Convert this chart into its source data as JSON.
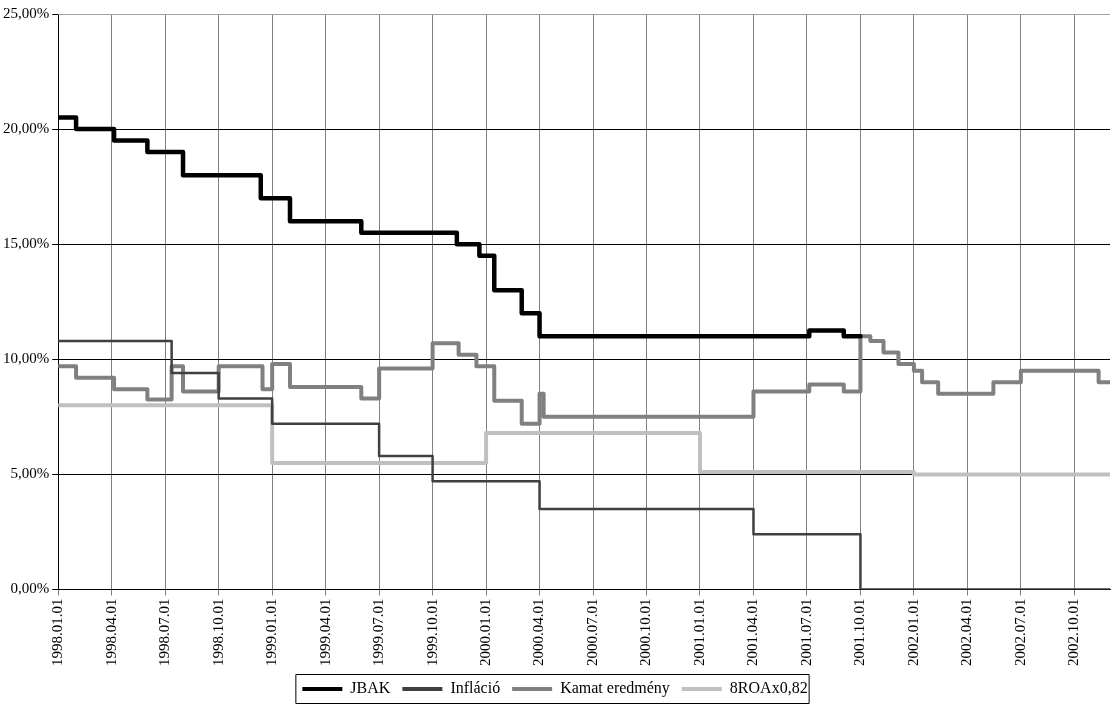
{
  "chart_data": {
    "type": "step",
    "xlim": [
      "1998-01-01",
      "2002-12-01"
    ],
    "xticks": [
      {
        "value": "1998-01-01",
        "label": "1998.01.01"
      },
      {
        "value": "1998-04-01",
        "label": "1998.04.01"
      },
      {
        "value": "1998-07-01",
        "label": "1998.07.01"
      },
      {
        "value": "1998-10-01",
        "label": "1998.10.01"
      },
      {
        "value": "1999-01-01",
        "label": "1999.01.01"
      },
      {
        "value": "1999-04-01",
        "label": "1999.04.01"
      },
      {
        "value": "1999-07-01",
        "label": "1999.07.01"
      },
      {
        "value": "1999-10-01",
        "label": "1999.10.01"
      },
      {
        "value": "2000-01-01",
        "label": "2000.01.01"
      },
      {
        "value": "2000-04-01",
        "label": "2000.04.01"
      },
      {
        "value": "2000-07-01",
        "label": "2000.07.01"
      },
      {
        "value": "2000-10-01",
        "label": "2000.10.01"
      },
      {
        "value": "2001-01-01",
        "label": "2001.01.01"
      },
      {
        "value": "2001-04-01",
        "label": "2001.04.01"
      },
      {
        "value": "2001-07-01",
        "label": "2001.07.01"
      },
      {
        "value": "2001-10-01",
        "label": "2001.10.01"
      },
      {
        "value": "2002-01-01",
        "label": "2002.01.01"
      },
      {
        "value": "2002-04-01",
        "label": "2002.04.01"
      },
      {
        "value": "2002-07-01",
        "label": "2002.07.01"
      },
      {
        "value": "2002-10-01",
        "label": "2002.10.01"
      }
    ],
    "ylim": [
      0,
      25
    ],
    "yticks": [
      {
        "value": 0,
        "label": "0,00%"
      },
      {
        "value": 5,
        "label": "5,00%"
      },
      {
        "value": 10,
        "label": "10,00%"
      },
      {
        "value": 15,
        "label": "15,00%"
      },
      {
        "value": 20,
        "label": "20,00%"
      },
      {
        "value": 25,
        "label": "25,00%"
      }
    ],
    "grid": true,
    "legend": "bottom",
    "line_style": "solid",
    "marker": "none",
    "series": [
      {
        "name": "JBAK",
        "color": "#000000",
        "x": [
          "1998-01-01",
          "1998-02-01",
          "1998-04-05",
          "1998-06-01",
          "1998-08-01",
          "1998-12-12",
          "1999-02-01",
          "1999-06-01",
          "1999-11-12",
          "1999-12-20",
          "2000-01-15",
          "2000-03-01",
          "2000-04-01",
          "2001-07-05",
          "2001-09-03",
          "2001-10-01"
        ],
        "values": [
          20.5,
          20,
          19.5,
          19,
          18,
          17,
          16,
          15.5,
          15,
          14.5,
          13,
          12,
          11,
          11.25,
          11,
          11
        ]
      },
      {
        "name": "Infláció",
        "color": "#404040",
        "x": [
          "1998-01-01",
          "1998-07-12",
          "1998-10-01",
          "1999-01-01",
          "1999-07-01",
          "1999-10-01",
          "2000-04-01",
          "2001-04-01",
          "2001-10-01",
          "2002-12-01"
        ],
        "values": [
          10.8,
          9.4,
          8.3,
          7.2,
          5.8,
          4.7,
          3.5,
          2.4,
          0,
          0
        ]
      },
      {
        "name": "Kamat eredmény",
        "color": "#808080",
        "x": [
          "1998-01-01",
          "1998-02-01",
          "1998-04-05",
          "1998-06-01",
          "1998-07-12",
          "1998-08-01",
          "1998-10-01",
          "1998-12-15",
          "1999-01-01",
          "1999-02-01",
          "1999-06-01",
          "1999-07-01",
          "1999-10-01",
          "1999-11-15",
          "1999-12-15",
          "2000-01-15",
          "2000-03-01",
          "2000-04-01",
          "2000-04-08",
          "2001-04-01",
          "2001-07-05",
          "2001-09-03",
          "2001-10-01",
          "2001-10-18",
          "2001-11-10",
          "2001-12-05",
          "2002-01-01",
          "2002-01-15",
          "2002-02-12",
          "2002-05-15",
          "2002-07-01",
          "2002-11-12",
          "2002-12-01"
        ],
        "values": [
          9.7,
          9.2,
          8.7,
          8.25,
          9.7,
          8.6,
          9.7,
          8.7,
          9.8,
          8.8,
          8.3,
          9.6,
          10.7,
          10.2,
          9.7,
          8.2,
          7.2,
          8.5,
          7.5,
          8.6,
          8.9,
          8.6,
          11,
          10.8,
          10.3,
          9.8,
          9.5,
          9,
          8.5,
          9,
          9.5,
          9,
          9
        ]
      },
      {
        "name": "8ROAx0,82",
        "color": "#c0c0c0",
        "x": [
          "1998-01-01",
          "1999-01-01",
          "2000-01-01",
          "2001-01-01",
          "2002-01-01",
          "2002-12-01"
        ],
        "values": [
          8,
          5.5,
          6.8,
          5.1,
          5,
          5
        ]
      }
    ]
  }
}
